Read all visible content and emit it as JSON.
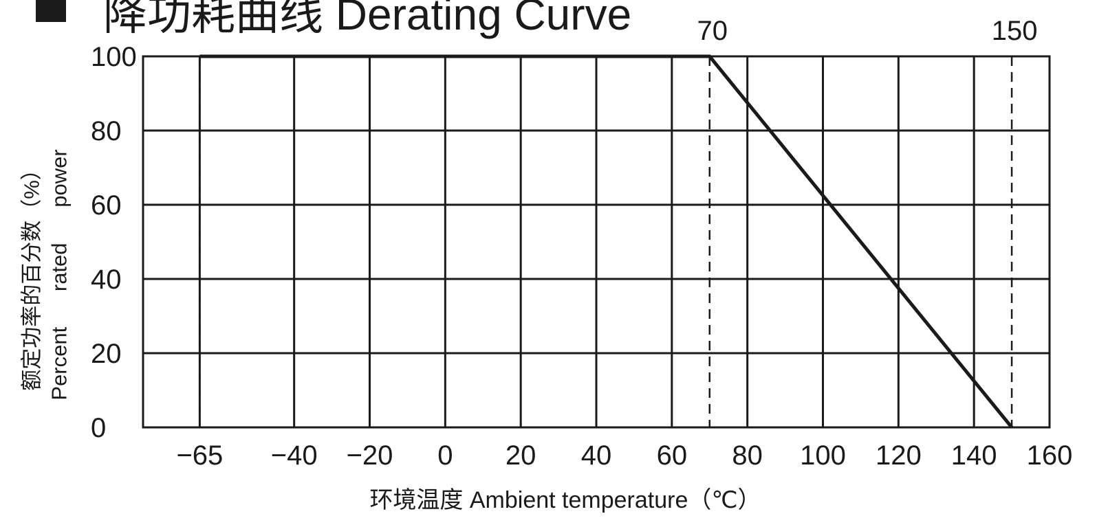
{
  "chart_data": {
    "type": "line",
    "title": "降功耗曲线 Derating Curve",
    "xlabel": "环境温度 Ambient temperature（℃）",
    "ylabel_lines": [
      "额定功率的百分数（%）",
      "Percent      rated      power"
    ],
    "x_ticks": [
      -65,
      -40,
      -20,
      0,
      20,
      40,
      60,
      80,
      100,
      120,
      140,
      160
    ],
    "x_tick_labels": [
      "−65",
      "−40",
      "−20",
      "0",
      "20",
      "40",
      "60",
      "80",
      "100",
      "120",
      "140",
      "160"
    ],
    "y_ticks": [
      0,
      20,
      40,
      60,
      80,
      100
    ],
    "xlim": [
      -80,
      160
    ],
    "ylim": [
      0,
      100
    ],
    "grid": true,
    "series": [
      {
        "x": [
          -65,
          70,
          150
        ],
        "y": [
          100,
          100,
          0
        ]
      }
    ],
    "reference_lines_x": [
      -65,
      70,
      150
    ],
    "annotations": [
      {
        "x": 70,
        "text": "70"
      },
      {
        "x": 150,
        "text": "150"
      }
    ]
  }
}
